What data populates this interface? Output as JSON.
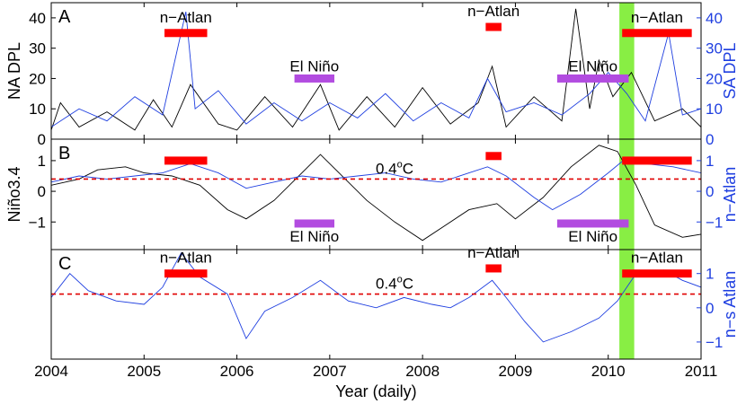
{
  "colors": {
    "black": "#000000",
    "blue": "#1f3fe0",
    "red": "#ff0000",
    "purple": "#b24ce0",
    "green": "#88ee44",
    "dashed": "#e00000"
  },
  "xaxis": {
    "label": "Year (daily)",
    "range": [
      2004,
      2011
    ],
    "ticks": [
      2004,
      2005,
      2006,
      2007,
      2008,
      2009,
      2010,
      2011
    ],
    "tick_labels": [
      "2004",
      "2005",
      "2006",
      "2007",
      "2008",
      "2009",
      "2010",
      "2011"
    ]
  },
  "green_band": {
    "x_range": [
      2010.12,
      2010.28
    ]
  },
  "chart_data": [
    {
      "panel": "A",
      "type": "line",
      "panel_letter": "A",
      "ylabel_left": "NA DPL",
      "ylabel_right": "SA DPL",
      "ylim": [
        0,
        45
      ],
      "yticks_left": [
        0,
        10,
        20,
        30,
        40
      ],
      "yticks_right": [
        0,
        10,
        20,
        30,
        40
      ],
      "ytick_labels_left": [
        "0",
        "10",
        "20",
        "30",
        "40"
      ],
      "ytick_labels_right": [
        "0",
        "10",
        "20",
        "30",
        "40"
      ],
      "series": [
        {
          "name": "NA DPL",
          "color": "black",
          "x": [
            2004.0,
            2004.1,
            2004.3,
            2004.6,
            2004.9,
            2005.1,
            2005.3,
            2005.5,
            2005.8,
            2006.0,
            2006.3,
            2006.6,
            2006.9,
            2007.1,
            2007.4,
            2007.7,
            2008.0,
            2008.3,
            2008.6,
            2008.75,
            2008.9,
            2009.2,
            2009.5,
            2009.65,
            2009.8,
            2009.9,
            2010.05,
            2010.25,
            2010.5,
            2010.8,
            2011.0
          ],
          "values": [
            3,
            12,
            4,
            9,
            3,
            13,
            4,
            18,
            5,
            3,
            14,
            4,
            18,
            3,
            14,
            4,
            17,
            5,
            12,
            24,
            4,
            14,
            6,
            43,
            10,
            26,
            14,
            22,
            6,
            10,
            4
          ]
        },
        {
          "name": "SA DPL",
          "color": "blue",
          "x": [
            2004.0,
            2004.3,
            2004.6,
            2004.9,
            2005.2,
            2005.45,
            2005.55,
            2005.8,
            2006.1,
            2006.4,
            2006.7,
            2007.0,
            2007.3,
            2007.6,
            2007.9,
            2008.2,
            2008.5,
            2008.7,
            2008.9,
            2009.2,
            2009.5,
            2009.8,
            2010.0,
            2010.2,
            2010.4,
            2010.65,
            2010.8,
            2011.0
          ],
          "values": [
            4,
            10,
            6,
            14,
            8,
            42,
            10,
            16,
            5,
            12,
            6,
            12,
            7,
            15,
            6,
            12,
            7,
            20,
            9,
            12,
            8,
            15,
            22,
            15,
            6,
            35,
            8,
            10
          ]
        }
      ],
      "periods": [
        {
          "label": "n−Atlan",
          "kind": "n-Atlan",
          "x_start": 2005.22,
          "x_end": 2005.68,
          "y": 35
        },
        {
          "label": "n−Atlan",
          "kind": "n-Atlan",
          "x_start": 2008.68,
          "x_end": 2008.85,
          "y": 37
        },
        {
          "label": "n−Atlan",
          "kind": "n-Atlan",
          "x_start": 2010.15,
          "x_end": 2010.9,
          "y": 35
        },
        {
          "label": "El Niño",
          "kind": "El Nino",
          "x_start": 2006.62,
          "x_end": 2007.05,
          "y": 20
        },
        {
          "label": "El Niño",
          "kind": "El Nino",
          "x_start": 2009.45,
          "x_end": 2010.22,
          "y": 20
        }
      ]
    },
    {
      "panel": "B",
      "type": "line",
      "panel_letter": "B",
      "ylabel_left": "Niño3.4",
      "ylabel_right": "n−Atlan",
      "ylim": [
        -1.9,
        1.7
      ],
      "yticks_left": [
        -1,
        0,
        1
      ],
      "yticks_right": [
        -1,
        0,
        1
      ],
      "ytick_labels_left": [
        "−1",
        "0",
        "1"
      ],
      "ytick_labels_right": [
        "−1",
        "0",
        "1"
      ],
      "threshold": {
        "value": 0.4,
        "label": "0.4",
        "unit_label": "C",
        "superscript": "o"
      },
      "series": [
        {
          "name": "Niño3.4",
          "color": "black",
          "x": [
            2004.0,
            2004.3,
            2004.5,
            2004.8,
            2005.0,
            2005.3,
            2005.6,
            2005.9,
            2006.1,
            2006.4,
            2006.7,
            2006.9,
            2007.1,
            2007.4,
            2007.7,
            2008.0,
            2008.2,
            2008.5,
            2008.8,
            2009.0,
            2009.3,
            2009.6,
            2009.9,
            2010.1,
            2010.3,
            2010.5,
            2010.8,
            2011.0
          ],
          "values": [
            0.2,
            0.4,
            0.7,
            0.8,
            0.6,
            0.5,
            0.2,
            -0.6,
            -0.9,
            -0.3,
            0.6,
            1.2,
            0.6,
            -0.3,
            -1.0,
            -1.6,
            -1.2,
            -0.6,
            -0.4,
            -0.9,
            -0.2,
            0.8,
            1.5,
            1.3,
            0.2,
            -1.1,
            -1.5,
            -1.4
          ]
        },
        {
          "name": "n−Atlan",
          "color": "blue",
          "x": [
            2004.0,
            2004.3,
            2004.6,
            2004.9,
            2005.2,
            2005.5,
            2005.8,
            2006.1,
            2006.4,
            2006.7,
            2007.0,
            2007.3,
            2007.6,
            2007.9,
            2008.2,
            2008.5,
            2008.7,
            2008.9,
            2009.2,
            2009.4,
            2009.7,
            2010.0,
            2010.2,
            2010.4,
            2010.7,
            2011.0
          ],
          "values": [
            0.3,
            0.5,
            0.4,
            0.5,
            0.6,
            0.9,
            0.6,
            0.1,
            0.3,
            0.5,
            0.4,
            0.5,
            0.6,
            0.4,
            0.3,
            0.6,
            0.8,
            0.5,
            -0.2,
            -0.6,
            -0.1,
            0.6,
            1.1,
            0.9,
            0.8,
            0.6
          ]
        }
      ],
      "periods": [
        {
          "label": "",
          "kind": "n-Atlan",
          "x_start": 2005.22,
          "x_end": 2005.68,
          "y": 1.0
        },
        {
          "label": "",
          "kind": "n-Atlan",
          "x_start": 2008.68,
          "x_end": 2008.85,
          "y": 1.15
        },
        {
          "label": "",
          "kind": "n-Atlan",
          "x_start": 2010.15,
          "x_end": 2010.9,
          "y": 1.0
        },
        {
          "label": "El Niño",
          "kind": "El Nino",
          "x_start": 2006.62,
          "x_end": 2007.05,
          "y": -1.05
        },
        {
          "label": "El Niño",
          "kind": "El Nino",
          "x_start": 2009.45,
          "x_end": 2010.22,
          "y": -1.05
        }
      ]
    },
    {
      "panel": "C",
      "type": "line",
      "panel_letter": "C",
      "ylabel_left": "",
      "ylabel_right": "n−s Atlan",
      "ylim": [
        -1.5,
        1.7
      ],
      "yticks_left": [],
      "yticks_right": [
        -1,
        0,
        1
      ],
      "ytick_labels_left": [],
      "ytick_labels_right": [
        "−1",
        "0",
        "1"
      ],
      "threshold": {
        "value": 0.4,
        "label": "0.4",
        "unit_label": "C",
        "superscript": "o"
      },
      "series": [
        {
          "name": "n−s Atlan",
          "color": "blue",
          "x": [
            2004.0,
            2004.2,
            2004.4,
            2004.7,
            2005.0,
            2005.2,
            2005.4,
            2005.6,
            2005.9,
            2006.1,
            2006.3,
            2006.6,
            2006.9,
            2007.2,
            2007.5,
            2007.8,
            2008.1,
            2008.3,
            2008.5,
            2008.75,
            2008.9,
            2009.1,
            2009.3,
            2009.6,
            2009.9,
            2010.1,
            2010.3,
            2010.6,
            2010.8,
            2011.0
          ],
          "values": [
            0.3,
            1.0,
            0.5,
            0.2,
            0.1,
            0.6,
            1.6,
            0.9,
            0.4,
            -0.9,
            -0.1,
            0.3,
            0.8,
            0.2,
            0.0,
            0.3,
            0.1,
            0.0,
            0.3,
            0.8,
            0.3,
            -0.4,
            -1.0,
            -0.7,
            -0.3,
            0.2,
            1.0,
            1.1,
            0.8,
            0.6
          ]
        }
      ],
      "periods": [
        {
          "label": "n−Atlan",
          "kind": "n-Atlan",
          "x_start": 2005.22,
          "x_end": 2005.68,
          "y": 1.0
        },
        {
          "label": "n−Atlan",
          "kind": "n-Atlan",
          "x_start": 2008.68,
          "x_end": 2008.85,
          "y": 1.15
        },
        {
          "label": "n−Atlan",
          "kind": "n-Atlan",
          "x_start": 2010.15,
          "x_end": 2010.9,
          "y": 1.0
        }
      ]
    }
  ]
}
